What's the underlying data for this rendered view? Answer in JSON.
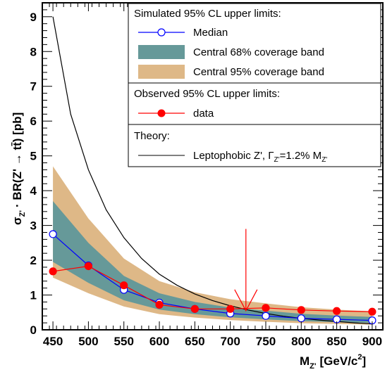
{
  "chart_data": {
    "type": "line",
    "xlabel": "M",
    "xlabel_sub": "Z'",
    "xlabel_unit": "[GeV/c",
    "xlabel_sup": "2",
    "xlabel_close": "]",
    "ylabel": "σ",
    "ylabel_sub": "Z'",
    "ylabel_rest": "· BR(Z' → tt̄) [pb]",
    "xlim": [
      435,
      915
    ],
    "ylim": [
      0,
      9.4
    ],
    "x_ticks": [
      450,
      500,
      550,
      600,
      650,
      700,
      750,
      800,
      850,
      900
    ],
    "y_ticks": [
      0,
      1,
      2,
      3,
      4,
      5,
      6,
      7,
      8,
      9
    ],
    "x": [
      450,
      500,
      550,
      600,
      650,
      700,
      750,
      800,
      850,
      900
    ],
    "series": [
      {
        "name": "Median",
        "color": "#0000ff",
        "marker": "open-circle",
        "values": [
          2.75,
          1.85,
          1.15,
          0.78,
          0.6,
          0.47,
          0.4,
          0.33,
          0.3,
          0.27
        ]
      },
      {
        "name": "data",
        "color": "#ff0000",
        "marker": "filled-circle",
        "values": [
          1.68,
          1.83,
          1.28,
          0.72,
          0.6,
          0.6,
          0.63,
          0.57,
          0.54,
          0.52
        ]
      },
      {
        "name": "Leptophobic Z', Γ",
        "name_sub": "Z'",
        "name_rest": "=1.2% M",
        "name_sub2": "Z'",
        "color": "#000000",
        "curve_x": [
          450,
          475,
          500,
          525,
          550,
          575,
          600,
          625,
          650,
          675,
          700,
          725,
          750,
          775,
          800,
          825,
          850,
          875,
          900
        ],
        "curve_y": [
          9.0,
          6.2,
          4.6,
          3.45,
          2.65,
          2.05,
          1.6,
          1.28,
          1.03,
          0.84,
          0.69,
          0.57,
          0.47,
          0.39,
          0.33,
          0.28,
          0.24,
          0.2,
          0.17
        ]
      }
    ],
    "band68": {
      "name": "Central 68% coverage band",
      "color": "#669999",
      "low": [
        1.95,
        1.35,
        0.85,
        0.58,
        0.45,
        0.36,
        0.3,
        0.25,
        0.22,
        0.2
      ],
      "high": [
        3.7,
        2.5,
        1.55,
        1.05,
        0.8,
        0.64,
        0.55,
        0.46,
        0.41,
        0.37
      ]
    },
    "band95": {
      "name": "Central 95% coverage band",
      "color": "#deb887",
      "low": [
        1.5,
        1.05,
        0.67,
        0.45,
        0.35,
        0.28,
        0.23,
        0.19,
        0.17,
        0.15
      ],
      "high": [
        4.7,
        3.2,
        2.05,
        1.4,
        1.08,
        0.88,
        0.76,
        0.65,
        0.58,
        0.53
      ]
    },
    "arrow": {
      "x": 722,
      "y_from": 2.9,
      "y_to": 0.55,
      "color": "#ff0000"
    },
    "legend": {
      "placement": "top-right",
      "header_simulated": "Simulated 95% CL upper limits:",
      "header_observed": "Observed 95% CL upper limits:",
      "header_theory": "Theory:"
    }
  }
}
